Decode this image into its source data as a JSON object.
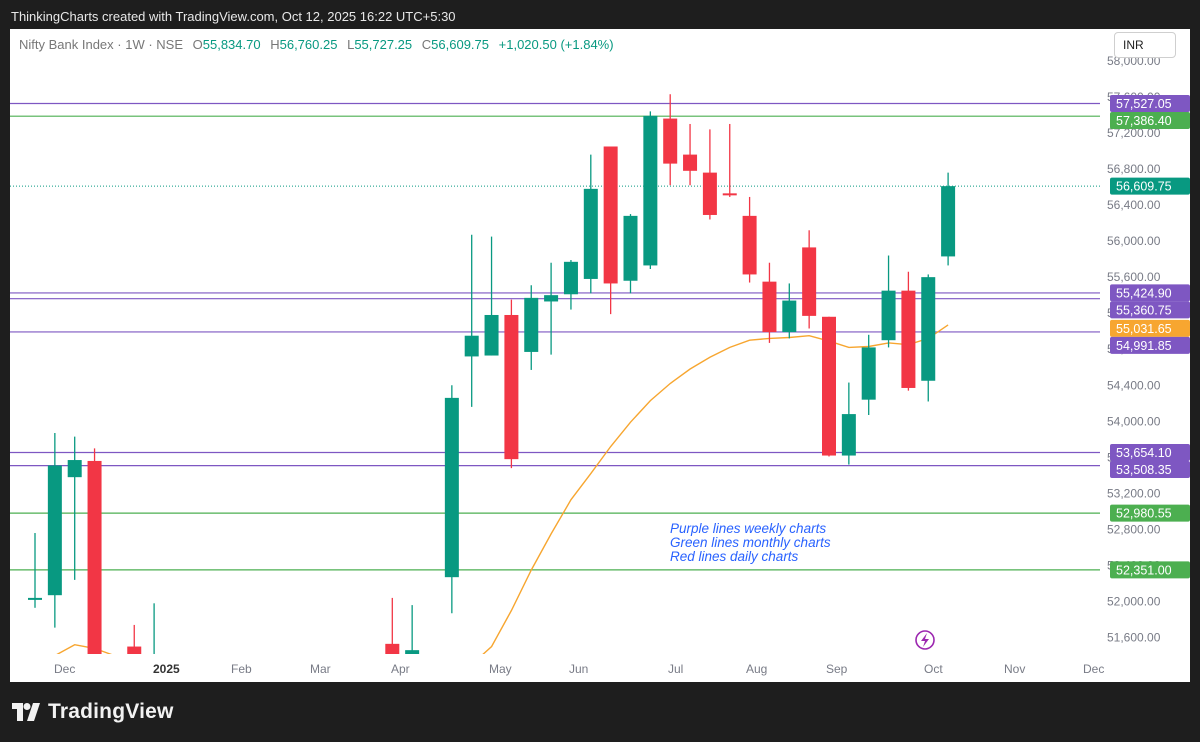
{
  "caption": "ThinkingCharts created with TradingView.com, Oct 12, 2025 16:22 UTC+5:30",
  "legend": {
    "symbol": "Nifty Bank Index · 1W · NSE",
    "o_key": "O",
    "o": "55,834.70",
    "h_key": "H",
    "h": "56,760.25",
    "l_key": "L",
    "l": "55,727.25",
    "c_key": "C",
    "c": "56,609.75",
    "change": "+1,020.50 (+1.84%)"
  },
  "currency": "INR",
  "footer": {
    "brand": "TradingView"
  },
  "colors": {
    "up": "#089981",
    "down": "#f23645",
    "purple": "#7e57c2",
    "green": "#4caf50",
    "ma": "#f7a630",
    "last": "#089981",
    "note": "#2962ff"
  },
  "chart_data": {
    "type": "candlestick",
    "title": "Nifty Bank Index · 1W · NSE",
    "ylim": [
      51300,
      58050
    ],
    "y_ticks": [
      51600,
      52000,
      52400,
      52800,
      53200,
      53600,
      54000,
      54400,
      54800,
      55200,
      55600,
      56000,
      56400,
      56800,
      57200,
      57600,
      58000
    ],
    "y_tick_labels": [
      "51,600.00",
      "52,000.00",
      "52,400.00",
      "52,800.00",
      "53,200.00",
      "53,600.00",
      "54,000.00",
      "54,400.00",
      "54,800.00",
      "55,200.00",
      "55,600.00",
      "56,000.00",
      "56,400.00",
      "56,800.00",
      "57,200.00",
      "57,600.00",
      "58,000.00"
    ],
    "x_labels": [
      {
        "label": "Dec",
        "bold": false
      },
      {
        "label": "2025",
        "bold": true
      },
      {
        "label": "Feb",
        "bold": false
      },
      {
        "label": "Mar",
        "bold": false
      },
      {
        "label": "Apr",
        "bold": false
      },
      {
        "label": "May",
        "bold": false
      },
      {
        "label": "Jun",
        "bold": false
      },
      {
        "label": "Jul",
        "bold": false
      },
      {
        "label": "Aug",
        "bold": false
      },
      {
        "label": "Sep",
        "bold": false
      },
      {
        "label": "Oct",
        "bold": false
      },
      {
        "label": "Nov",
        "bold": false
      },
      {
        "label": "Dec",
        "bold": false
      }
    ],
    "candles": [
      {
        "w": 0,
        "o": 52040,
        "h": 52760,
        "l": 51930,
        "c": 52040
      },
      {
        "w": 1,
        "o": 52070,
        "h": 53870,
        "l": 51710,
        "c": 53510
      },
      {
        "w": 2,
        "o": 53380,
        "h": 53830,
        "l": 52240,
        "c": 53570
      },
      {
        "w": 3,
        "o": 53560,
        "h": 53700,
        "l": 51300,
        "c": 51300
      },
      {
        "w": 5,
        "o": 51500,
        "h": 51740,
        "l": 51300,
        "c": 51300
      },
      {
        "w": 6,
        "o": 51300,
        "h": 51980,
        "l": 51300,
        "c": 51300
      },
      {
        "w": 18,
        "o": 51530,
        "h": 52040,
        "l": 51300,
        "c": 51400
      },
      {
        "w": 19,
        "o": 51380,
        "h": 51960,
        "l": 51300,
        "c": 51460
      },
      {
        "w": 21,
        "o": 52270,
        "h": 54400,
        "l": 51870,
        "c": 54260
      },
      {
        "w": 22,
        "o": 54720,
        "h": 56070,
        "l": 54160,
        "c": 54950
      },
      {
        "w": 23,
        "o": 54730,
        "h": 56050,
        "l": 54730,
        "c": 55180
      },
      {
        "w": 24,
        "o": 55180,
        "h": 55350,
        "l": 53480,
        "c": 53580
      },
      {
        "w": 25,
        "o": 54770,
        "h": 55510,
        "l": 54570,
        "c": 55370
      },
      {
        "w": 26,
        "o": 55330,
        "h": 55760,
        "l": 54740,
        "c": 55400
      },
      {
        "w": 27,
        "o": 55410,
        "h": 55790,
        "l": 55240,
        "c": 55770
      },
      {
        "w": 28,
        "o": 55580,
        "h": 56960,
        "l": 55420,
        "c": 56580
      },
      {
        "w": 29,
        "o": 57050,
        "h": 57050,
        "l": 55190,
        "c": 55530
      },
      {
        "w": 30,
        "o": 55560,
        "h": 56300,
        "l": 55420,
        "c": 56280
      },
      {
        "w": 31,
        "o": 55730,
        "h": 57440,
        "l": 55690,
        "c": 57390
      },
      {
        "w": 32,
        "o": 57360,
        "h": 57630,
        "l": 56620,
        "c": 56860
      },
      {
        "w": 33,
        "o": 56960,
        "h": 57300,
        "l": 56620,
        "c": 56780
      },
      {
        "w": 34,
        "o": 56760,
        "h": 57240,
        "l": 56240,
        "c": 56290
      },
      {
        "w": 35,
        "o": 56530,
        "h": 57300,
        "l": 56490,
        "c": 56520
      },
      {
        "w": 36,
        "o": 56280,
        "h": 56490,
        "l": 55540,
        "c": 55630
      },
      {
        "w": 37,
        "o": 55550,
        "h": 55760,
        "l": 54870,
        "c": 54990
      },
      {
        "w": 38,
        "o": 54990,
        "h": 55530,
        "l": 54920,
        "c": 55340
      },
      {
        "w": 39,
        "o": 55930,
        "h": 56120,
        "l": 55030,
        "c": 55170
      },
      {
        "w": 40,
        "o": 55160,
        "h": 55160,
        "l": 53610,
        "c": 53620
      },
      {
        "w": 41,
        "o": 53620,
        "h": 54430,
        "l": 53520,
        "c": 54080
      },
      {
        "w": 42,
        "o": 54240,
        "h": 54960,
        "l": 54070,
        "c": 54820
      },
      {
        "w": 43,
        "o": 54900,
        "h": 55840,
        "l": 54820,
        "c": 55450
      },
      {
        "w": 44,
        "o": 55450,
        "h": 55660,
        "l": 54340,
        "c": 54370
      },
      {
        "w": 45,
        "o": 54450,
        "h": 55630,
        "l": 54220,
        "c": 55600
      },
      {
        "w": 46,
        "o": 55830,
        "h": 56760,
        "l": 55730,
        "c": 56610
      }
    ],
    "moving_average": {
      "color": "#f7a630",
      "points": [
        [
          1,
          51400
        ],
        [
          2,
          51520
        ],
        [
          3,
          51480
        ],
        [
          4,
          51400
        ],
        [
          6,
          51320
        ],
        [
          22,
          51300
        ],
        [
          23,
          51500
        ],
        [
          24,
          51900
        ],
        [
          25,
          52350
        ],
        [
          26,
          52750
        ],
        [
          27,
          53130
        ],
        [
          28,
          53420
        ],
        [
          29,
          53720
        ],
        [
          30,
          53990
        ],
        [
          31,
          54230
        ],
        [
          32,
          54420
        ],
        [
          33,
          54580
        ],
        [
          34,
          54710
        ],
        [
          35,
          54820
        ],
        [
          36,
          54900
        ],
        [
          37,
          54920
        ],
        [
          38,
          54930
        ],
        [
          39,
          54950
        ],
        [
          40,
          54890
        ],
        [
          41,
          54820
        ],
        [
          42,
          54830
        ],
        [
          43,
          54870
        ],
        [
          44,
          54850
        ],
        [
          45,
          54920
        ],
        [
          46,
          55070
        ]
      ]
    },
    "levels": [
      {
        "value": 57527.05,
        "label": "57,527.05",
        "kind": "purple"
      },
      {
        "value": 57386.4,
        "label": "57,386.40",
        "kind": "green"
      },
      {
        "value": 55424.9,
        "label": "55,424.90",
        "kind": "purple"
      },
      {
        "value": 55360.75,
        "label": "55,360.75",
        "kind": "purple"
      },
      {
        "value": 55031.65,
        "label": "55,031.65",
        "kind": "ma"
      },
      {
        "value": 54991.85,
        "label": "54,991.85",
        "kind": "purple"
      },
      {
        "value": 53654.1,
        "label": "53,654.10",
        "kind": "purple"
      },
      {
        "value": 53508.35,
        "label": "53,508.35",
        "kind": "purple"
      },
      {
        "value": 52980.55,
        "label": "52,980.55",
        "kind": "green"
      },
      {
        "value": 52351.0,
        "label": "52,351.00",
        "kind": "green"
      }
    ],
    "last_price": {
      "value": 56609.75,
      "label": "56,609.75"
    },
    "annotations": [
      "Purple lines weekly charts",
      "Green lines monthly charts",
      "Red lines daily charts"
    ]
  }
}
